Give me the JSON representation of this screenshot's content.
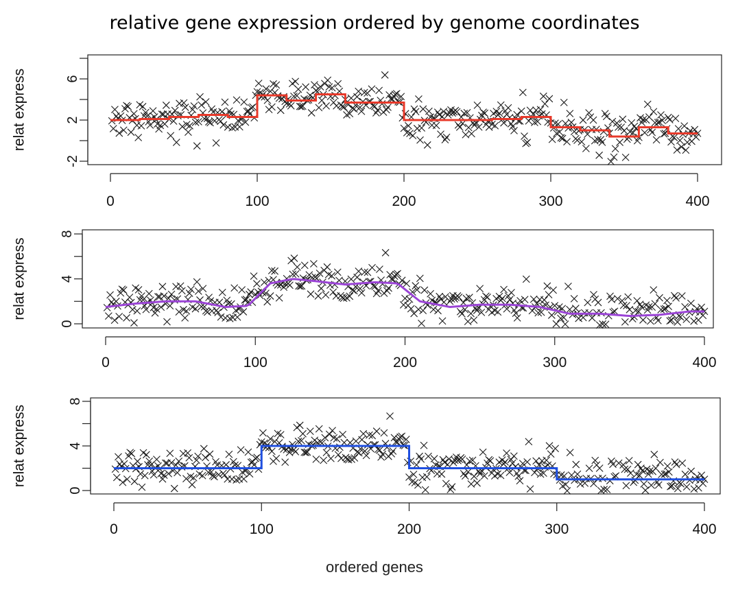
{
  "title": "relative gene expression ordered by genome coordinates",
  "xlabel": "ordered genes",
  "chart_data": [
    {
      "type": "line",
      "ylabel": "relat express",
      "xlim": [
        0,
        400
      ],
      "ylim": [
        -2,
        8
      ],
      "x_ticks": [
        0,
        100,
        200,
        300,
        400
      ],
      "y_ticks": [
        -2,
        0,
        2,
        4,
        6,
        8
      ],
      "y_tick_labels": [
        "-2",
        "",
        "2",
        "",
        "6",
        ""
      ],
      "line_color": "#e8392a",
      "series": [
        {
          "kind": "step",
          "x": [
            0,
            20,
            40,
            60,
            80,
            100,
            120,
            140,
            160,
            180,
            200,
            220,
            240,
            260,
            280,
            300,
            320,
            340,
            360,
            380,
            400
          ],
          "y": [
            2.0,
            2.1,
            2.3,
            2.5,
            2.3,
            4.4,
            3.9,
            4.5,
            3.7,
            3.7,
            2.0,
            2.0,
            2.0,
            2.1,
            2.3,
            1.3,
            1.0,
            0.4,
            1.3,
            0.7,
            0.7
          ]
        }
      ]
    },
    {
      "type": "line",
      "ylabel": "relat express",
      "xlim": [
        0,
        400
      ],
      "ylim": [
        -1.5,
        8
      ],
      "x_ticks": [
        0,
        100,
        200,
        300,
        400
      ],
      "y_ticks": [
        0,
        2,
        4,
        6,
        8
      ],
      "y_tick_labels": [
        "0",
        "",
        "4",
        "",
        "8"
      ],
      "line_color": "#9b44d6",
      "series": [
        {
          "kind": "smooth",
          "x": [
            0,
            20,
            40,
            60,
            80,
            95,
            110,
            125,
            140,
            160,
            180,
            195,
            210,
            230,
            250,
            270,
            290,
            310,
            330,
            350,
            370,
            390,
            400
          ],
          "y": [
            1.5,
            1.8,
            2.0,
            2.0,
            1.5,
            1.6,
            3.6,
            4.0,
            3.8,
            3.5,
            3.7,
            3.6,
            2.0,
            1.5,
            1.7,
            1.7,
            1.5,
            0.9,
            0.9,
            0.7,
            0.8,
            1.1,
            1.1
          ]
        }
      ]
    },
    {
      "type": "line",
      "ylabel": "relat express",
      "xlim": [
        0,
        400
      ],
      "ylim": [
        -1.5,
        8
      ],
      "x_ticks": [
        0,
        100,
        200,
        300,
        400
      ],
      "y_ticks": [
        0,
        2,
        4,
        6,
        8
      ],
      "y_tick_labels": [
        "0",
        "",
        "4",
        "",
        "8"
      ],
      "line_color": "#1f4fe0",
      "series": [
        {
          "kind": "step",
          "x": [
            0,
            100,
            200,
            300,
            400
          ],
          "y": [
            2.0,
            4.0,
            2.0,
            1.0,
            1.0
          ]
        }
      ]
    }
  ]
}
